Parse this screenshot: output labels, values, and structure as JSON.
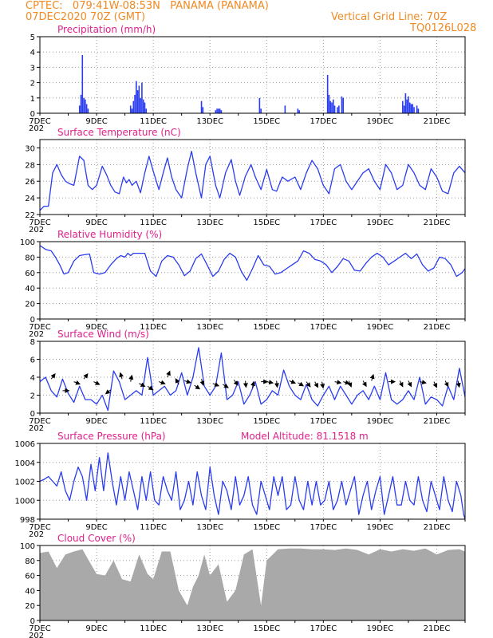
{
  "header": {
    "line1_left": "CPTEC:   079:41W-08:53N   PANAMA (PANAMA)",
    "line2_left": "07DEC2020 70Z (GMT)",
    "line1_right": "Vertical Grid Line: 70Z",
    "line2_right": "TQ0126L028"
  },
  "colors": {
    "header": "#f08a24",
    "title": "#e0208a",
    "line": "#2a3cf0",
    "bar": "#2a3cf0",
    "cloud": "#a9a9a9",
    "grid": "#9a9a9a"
  },
  "x_axis": {
    "labels": [
      "7DEC",
      "9DEC",
      "11DEC",
      "13DEC",
      "15DEC",
      "17DEC",
      "19DEC",
      "21DEC"
    ],
    "cut_label": "202",
    "range_days": [
      0,
      15
    ]
  },
  "chart_data": [
    {
      "type": "bar",
      "title": "Precipitation (mm/h)",
      "ylim": [
        0,
        5
      ],
      "yticks": [
        0,
        1,
        2,
        3,
        4,
        5
      ],
      "x_unit": "days since 7DEC",
      "x": [
        1.4,
        1.45,
        1.5,
        1.55,
        1.6,
        1.65,
        1.7,
        3.2,
        3.25,
        3.3,
        3.35,
        3.4,
        3.45,
        3.5,
        3.55,
        3.6,
        3.65,
        3.7,
        3.75,
        5.7,
        5.75,
        6.2,
        6.25,
        6.3,
        6.35,
        6.4,
        7.75,
        7.8,
        8.65,
        9.1,
        9.15,
        10.15,
        10.2,
        10.25,
        10.3,
        10.35,
        10.4,
        10.5,
        10.55,
        10.65,
        10.7,
        12.8,
        12.85,
        12.9,
        12.95,
        13.0,
        13.05,
        13.1,
        13.15,
        13.2,
        13.3,
        13.35
      ],
      "values": [
        0.5,
        1.2,
        3.8,
        1.0,
        0.9,
        0.6,
        0.3,
        0.5,
        0.3,
        0.8,
        1.2,
        2.1,
        1.5,
        1.8,
        1.0,
        2.0,
        0.9,
        0.7,
        0.3,
        0.8,
        0.4,
        0.2,
        0.3,
        0.3,
        0.3,
        0.2,
        1.0,
        0.3,
        0.5,
        0.3,
        0.2,
        2.5,
        1.2,
        0.8,
        0.7,
        0.9,
        0.5,
        0.4,
        0.5,
        1.1,
        1.0,
        0.8,
        0.5,
        1.3,
        0.9,
        1.1,
        0.7,
        0.6,
        0.6,
        0.4,
        0.5,
        0.3
      ]
    },
    {
      "type": "line",
      "title": "Surface Temperature (nC)",
      "ylim": [
        22,
        31
      ],
      "yticks": [
        22,
        24,
        26,
        28,
        30
      ],
      "x_unit": "days since 7DEC",
      "x": [
        0,
        0.15,
        0.3,
        0.45,
        0.6,
        0.75,
        0.9,
        1.05,
        1.2,
        1.4,
        1.55,
        1.7,
        1.85,
        2.0,
        2.2,
        2.35,
        2.5,
        2.65,
        2.8,
        2.95,
        3.05,
        3.15,
        3.25,
        3.4,
        3.55,
        3.7,
        3.85,
        4.0,
        4.2,
        4.35,
        4.5,
        4.65,
        4.8,
        5.0,
        5.2,
        5.35,
        5.5,
        5.7,
        5.85,
        6.0,
        6.2,
        6.35,
        6.55,
        6.75,
        6.9,
        7.05,
        7.25,
        7.45,
        7.6,
        7.8,
        8.0,
        8.2,
        8.35,
        8.55,
        8.75,
        9.0,
        9.2,
        9.4,
        9.6,
        9.8,
        10.0,
        10.2,
        10.4,
        10.6,
        10.8,
        11.0,
        11.2,
        11.4,
        11.6,
        11.8,
        12.0,
        12.2,
        12.4,
        12.6,
        12.8,
        13.0,
        13.2,
        13.4,
        13.6,
        13.8,
        14.0,
        14.2,
        14.4,
        14.6,
        14.8,
        15.0
      ],
      "values": [
        22.5,
        23.0,
        23.0,
        27.0,
        28.0,
        26.8,
        26.0,
        25.7,
        25.5,
        29.0,
        28.5,
        25.5,
        25.0,
        25.5,
        27.8,
        26.8,
        25.5,
        24.7,
        24.5,
        26.5,
        25.8,
        26.2,
        25.5,
        26.0,
        24.6,
        27.0,
        29.0,
        27.2,
        25.0,
        27.0,
        28.8,
        26.5,
        25.0,
        24.0,
        27.5,
        29.6,
        27.0,
        24.0,
        28.0,
        29.0,
        25.5,
        24.0,
        27.0,
        28.6,
        26.0,
        24.3,
        26.6,
        28.0,
        26.5,
        25.0,
        27.4,
        25.0,
        24.8,
        26.5,
        26.0,
        26.5,
        25.0,
        27.0,
        28.5,
        27.5,
        25.5,
        24.5,
        27.5,
        28.0,
        26.0,
        25.0,
        26.0,
        27.0,
        27.5,
        26.0,
        25.0,
        28.0,
        27.0,
        25.0,
        25.5,
        28.0,
        27.0,
        25.5,
        25.0,
        27.5,
        26.5,
        24.8,
        24.5,
        27.0,
        27.8,
        27.0
      ]
    },
    {
      "type": "line",
      "title": "Relative Humidity (%)",
      "ylim": [
        0,
        100
      ],
      "yticks": [
        0,
        20,
        40,
        60,
        80,
        100
      ],
      "x_unit": "days since 7DEC",
      "x": [
        0,
        0.2,
        0.4,
        0.55,
        0.7,
        0.85,
        1.0,
        1.2,
        1.4,
        1.55,
        1.75,
        1.9,
        2.1,
        2.3,
        2.5,
        2.7,
        2.85,
        3.0,
        3.1,
        3.2,
        3.3,
        3.5,
        3.7,
        3.9,
        4.1,
        4.3,
        4.5,
        4.7,
        4.9,
        5.1,
        5.3,
        5.5,
        5.7,
        5.9,
        6.1,
        6.3,
        6.5,
        6.7,
        6.9,
        7.1,
        7.3,
        7.5,
        7.7,
        7.9,
        8.1,
        8.3,
        8.5,
        8.7,
        8.9,
        9.1,
        9.3,
        9.5,
        9.7,
        9.9,
        10.1,
        10.3,
        10.5,
        10.7,
        10.9,
        11.1,
        11.3,
        11.5,
        11.7,
        11.9,
        12.1,
        12.3,
        12.5,
        12.7,
        12.9,
        13.1,
        13.3,
        13.5,
        13.7,
        13.9,
        14.1,
        14.3,
        14.5,
        14.7,
        14.9,
        15.0
      ],
      "values": [
        95,
        90,
        88,
        80,
        70,
        58,
        60,
        75,
        82,
        83,
        84,
        60,
        58,
        60,
        70,
        78,
        82,
        80,
        85,
        82,
        85,
        85,
        85,
        62,
        55,
        75,
        82,
        80,
        70,
        56,
        62,
        78,
        84,
        70,
        55,
        62,
        77,
        85,
        80,
        62,
        50,
        65,
        82,
        70,
        68,
        58,
        60,
        65,
        70,
        75,
        88,
        85,
        77,
        75,
        70,
        60,
        68,
        78,
        75,
        63,
        62,
        72,
        80,
        85,
        80,
        70,
        75,
        80,
        85,
        78,
        84,
        70,
        62,
        66,
        80,
        78,
        70,
        55,
        60,
        65
      ]
    },
    {
      "type": "line",
      "title": "Surface Wind (m/s)",
      "ylim": [
        0,
        8
      ],
      "yticks": [
        0,
        2,
        4,
        6,
        8
      ],
      "x_unit": "days since 7DEC",
      "x": [
        0,
        0.2,
        0.4,
        0.6,
        0.8,
        1.0,
        1.2,
        1.4,
        1.6,
        1.8,
        2.0,
        2.2,
        2.4,
        2.6,
        2.8,
        3.0,
        3.2,
        3.4,
        3.6,
        3.8,
        4.0,
        4.2,
        4.4,
        4.6,
        4.8,
        5.0,
        5.2,
        5.4,
        5.6,
        5.8,
        6.0,
        6.2,
        6.4,
        6.6,
        6.8,
        7.0,
        7.2,
        7.4,
        7.6,
        7.8,
        8.0,
        8.2,
        8.4,
        8.6,
        8.8,
        9.0,
        9.2,
        9.4,
        9.6,
        9.8,
        10.0,
        10.2,
        10.4,
        10.6,
        10.8,
        11.0,
        11.2,
        11.4,
        11.6,
        11.8,
        12.0,
        12.2,
        12.4,
        12.6,
        12.8,
        13.0,
        13.2,
        13.4,
        13.6,
        13.8,
        14.0,
        14.2,
        14.4,
        14.6,
        14.8,
        15.0
      ],
      "values": [
        3.5,
        4.0,
        2.5,
        1.8,
        3.8,
        2.2,
        1.2,
        3.0,
        1.5,
        1.5,
        1.0,
        2.0,
        0.3,
        4.7,
        3.5,
        1.5,
        2.0,
        2.5,
        2.0,
        6.2,
        2.0,
        2.5,
        3.0,
        2.0,
        2.5,
        4.5,
        2.0,
        4.0,
        7.3,
        3.0,
        2.0,
        3.0,
        6.7,
        1.5,
        2.0,
        3.5,
        1.0,
        2.0,
        3.5,
        1.0,
        1.5,
        2.5,
        2.0,
        4.8,
        3.0,
        2.0,
        1.5,
        3.2,
        1.5,
        0.8,
        2.0,
        3.0,
        1.5,
        3.0,
        2.0,
        1.0,
        2.0,
        2.5,
        1.5,
        3.0,
        1.5,
        4.5,
        1.5,
        1.0,
        1.5,
        2.5,
        1.5,
        4.0,
        1.0,
        1.8,
        1.5,
        0.8,
        3.0,
        1.5,
        5.0,
        1.8
      ]
    },
    {
      "type": "line",
      "title": "Surface Pressure (hPa)",
      "subtitle": "Model Altitude: 81.1518 m",
      "ylim": [
        998,
        1006
      ],
      "yticks": [
        998,
        1000,
        1002,
        1004,
        1006
      ],
      "x_unit": "days since 7DEC",
      "x": [
        0,
        0.15,
        0.3,
        0.45,
        0.6,
        0.75,
        0.9,
        1.05,
        1.2,
        1.35,
        1.5,
        1.65,
        1.8,
        1.95,
        2.1,
        2.25,
        2.4,
        2.55,
        2.7,
        2.85,
        3.0,
        3.15,
        3.3,
        3.45,
        3.6,
        3.75,
        3.9,
        4.05,
        4.2,
        4.35,
        4.5,
        4.65,
        4.8,
        4.95,
        5.1,
        5.25,
        5.4,
        5.55,
        5.7,
        5.85,
        6.0,
        6.15,
        6.3,
        6.45,
        6.6,
        6.75,
        6.9,
        7.05,
        7.2,
        7.35,
        7.5,
        7.65,
        7.8,
        7.95,
        8.1,
        8.25,
        8.4,
        8.55,
        8.7,
        8.85,
        9.0,
        9.15,
        9.3,
        9.45,
        9.6,
        9.75,
        9.9,
        10.05,
        10.2,
        10.35,
        10.5,
        10.65,
        10.8,
        10.95,
        11.1,
        11.25,
        11.4,
        11.55,
        11.7,
        11.85,
        12.0,
        12.15,
        12.3,
        12.45,
        12.6,
        12.75,
        12.9,
        13.05,
        13.2,
        13.35,
        13.5,
        13.65,
        13.8,
        13.95,
        14.1,
        14.25,
        14.4,
        14.55,
        14.7,
        14.85,
        14.95,
        15.0
      ],
      "values": [
        1002.0,
        1002.2,
        1002.5,
        1002.0,
        1001.5,
        1003.0,
        1001.0,
        1000.0,
        1002.0,
        1003.5,
        1002.5,
        1000.0,
        1003.8,
        1001.0,
        1004.5,
        1001.0,
        1005.0,
        1002.0,
        999.5,
        1002.5,
        1000.0,
        1003.0,
        1001.0,
        999.0,
        1002.5,
        1000.0,
        1003.0,
        1000.0,
        999.5,
        1002.5,
        1001.0,
        1000.0,
        1003.0,
        999.0,
        1000.0,
        1002.0,
        999.5,
        1003.0,
        1000.5,
        999.0,
        1003.5,
        1000.5,
        998.5,
        1002.0,
        1001.0,
        999.0,
        1002.5,
        999.5,
        1000.5,
        1002.5,
        999.5,
        998.5,
        1002.0,
        1000.5,
        999.0,
        1002.5,
        1000.5,
        1002.5,
        999.0,
        999.5,
        1002.5,
        1000.0,
        999.0,
        1002.0,
        999.5,
        1002.0,
        999.5,
        1000.0,
        1002.0,
        999.0,
        1000.0,
        1002.0,
        999.5,
        1001.0,
        1002.5,
        998.5,
        1000.5,
        1002.0,
        999.0,
        1001.0,
        1002.5,
        998.5,
        1000.5,
        1002.5,
        999.5,
        999.5,
        1002.0,
        1000.0,
        999.5,
        1002.5,
        1000.0,
        998.8,
        1002.0,
        1000.5,
        999.0,
        1002.5,
        1000.0,
        998.8,
        1002.0,
        1000.5,
        998.5,
        998.0
      ]
    },
    {
      "type": "area",
      "title": "Cloud Cover (%)",
      "ylim": [
        0,
        100
      ],
      "yticks": [
        0,
        20,
        40,
        60,
        80,
        100
      ],
      "x_unit": "days since 7DEC",
      "x": [
        0,
        0.3,
        0.6,
        0.9,
        1.2,
        1.5,
        1.8,
        2.0,
        2.3,
        2.6,
        2.9,
        3.2,
        3.5,
        3.8,
        4.0,
        4.3,
        4.6,
        4.9,
        5.2,
        5.4,
        5.6,
        5.8,
        6.0,
        6.3,
        6.6,
        6.9,
        7.2,
        7.5,
        7.8,
        8.0,
        8.4,
        8.8,
        9.2,
        9.6,
        10.0,
        10.4,
        10.8,
        11.2,
        11.6,
        12.0,
        12.4,
        12.8,
        13.2,
        13.6,
        14.0,
        14.4,
        14.8,
        15.0
      ],
      "values": [
        90,
        92,
        70,
        88,
        92,
        95,
        75,
        62,
        60,
        80,
        55,
        52,
        88,
        62,
        55,
        92,
        92,
        40,
        20,
        45,
        60,
        88,
        60,
        75,
        25,
        40,
        88,
        95,
        20,
        80,
        95,
        96,
        96,
        95,
        95,
        94,
        96,
        94,
        88,
        95,
        92,
        95,
        93,
        96,
        88,
        94,
        95,
        92
      ]
    }
  ],
  "wind_arrows": {
    "x": [
      0.4,
      0.8,
      1.2,
      1.55,
      1.9,
      2.5,
      2.9,
      3.2,
      3.5,
      3.8,
      4.2,
      4.5,
      4.9,
      5.1,
      5.45,
      5.7,
      6.1,
      6.45,
      6.85,
      7.25,
      7.5,
      7.8,
      8.0,
      8.35,
      8.8,
      9.1,
      9.4,
      9.7,
      9.95,
      10.4,
      10.7,
      10.9,
      11.4,
      11.7,
      12.3,
      12.7,
      13.0,
      13.4,
      13.9,
      14.3,
      14.75
    ],
    "dx": [
      0.6,
      1,
      1,
      0.6,
      1,
      -1,
      -0.3,
      0.2,
      1,
      1,
      0.9,
      0.4,
      -0.5,
      1,
      1,
      0.3,
      1,
      1,
      0.7,
      0.1,
      0.2,
      1,
      1,
      0.1,
      1,
      1,
      0.7,
      0.5,
      0.2,
      1,
      1,
      0.4,
      0.6,
      0.3,
      1,
      0.5,
      0.5,
      1,
      0.5,
      0.5,
      0.2
    ],
    "dy": [
      -0.8,
      0,
      0.4,
      -0.8,
      0.5,
      0.8,
      -1,
      -1,
      0.5,
      0.7,
      0.3,
      -1,
      -0.9,
      0.3,
      0.7,
      1,
      0.4,
      0.6,
      1,
      1,
      -1,
      0,
      0.2,
      1,
      0.4,
      0.6,
      0.9,
      0.9,
      1,
      0.2,
      0.3,
      1,
      1,
      -1,
      0,
      1,
      1,
      0.2,
      1,
      1,
      1
    ],
    "yval": [
      3.8,
      2.5,
      3.5,
      3.8,
      3.5,
      2.6,
      3.8,
      3.5,
      3.3,
      3.0,
      3.5,
      4.0,
      3.2,
      3.6,
      3.1,
      3.8,
      3.3,
      3.2,
      3.7,
      3.6,
      2.8,
      3.5,
      3.5,
      3.6,
      3.6,
      3.4,
      3.5,
      3.5,
      3.5,
      3.5,
      3.5,
      3.6,
      3.6,
      3.6,
      3.5,
      3.6,
      3.6,
      3.5,
      3.5,
      3.6,
      3.6
    ]
  }
}
